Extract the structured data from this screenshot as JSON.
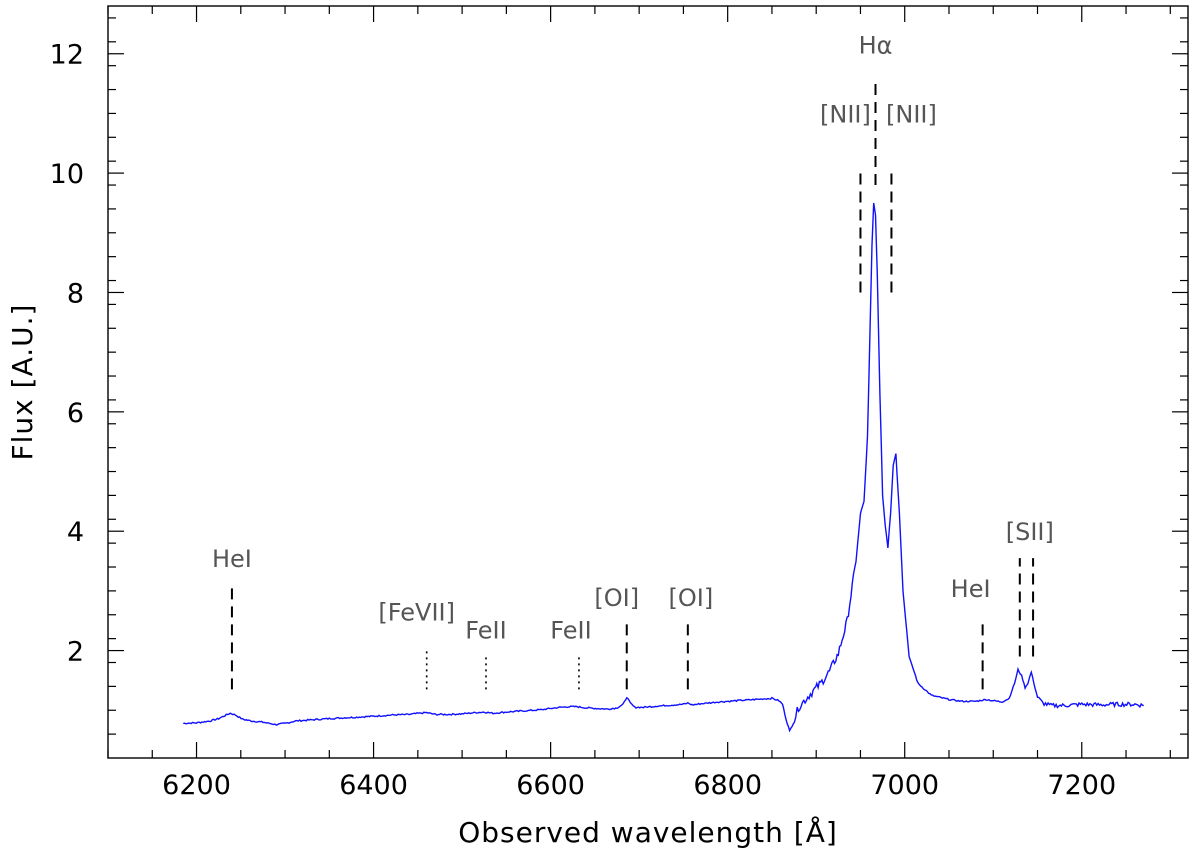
{
  "chart_data": {
    "type": "line",
    "title": "",
    "xlabel": "Observed wavelength [Å]",
    "ylabel": "Flux [A.U.]",
    "xlim": [
      6100,
      7320
    ],
    "ylim": [
      0.2,
      12.8
    ],
    "xticks": [
      6200,
      6400,
      6600,
      6800,
      7000,
      7200
    ],
    "xtick_labels": [
      "6200",
      "6400",
      "6600",
      "6800",
      "7000",
      "7200"
    ],
    "yticks": [
      2,
      4,
      6,
      8,
      10,
      12
    ],
    "ytick_labels": [
      "2",
      "4",
      "6",
      "8",
      "10",
      "12"
    ],
    "x_minor_step": 50,
    "y_minor_step": 0.4,
    "grid": false,
    "series": [
      {
        "color": "#1010ff",
        "x": [
          6185,
          6200,
          6215,
          6225,
          6232,
          6238,
          6244,
          6252,
          6262,
          6275,
          6290,
          6300,
          6312,
          6330,
          6350,
          6375,
          6400,
          6420,
          6440,
          6452,
          6460,
          6470,
          6485,
          6500,
          6515,
          6525,
          6535,
          6550,
          6570,
          6590,
          6605,
          6620,
          6630,
          6640,
          6652,
          6665,
          6675,
          6682,
          6686,
          6690,
          6695,
          6705,
          6720,
          6740,
          6750,
          6755,
          6760,
          6770,
          6790,
          6810,
          6830,
          6850,
          6858,
          6862,
          6866,
          6870,
          6874,
          6880,
          6886,
          6895,
          6905,
          6915,
          6925,
          6935,
          6945,
          6950,
          6954,
          6958,
          6961,
          6963,
          6965,
          6967,
          6969,
          6972,
          6975,
          6978,
          6981,
          6984,
          6987,
          6990,
          6994,
          6998,
          7005,
          7015,
          7030,
          7050,
          7065,
          7080,
          7088,
          7092,
          7100,
          7110,
          7118,
          7124,
          7128,
          7132,
          7136,
          7139,
          7143,
          7146,
          7150,
          7156,
          7165,
          7180,
          7200,
          7220,
          7240,
          7260,
          7270
        ],
        "y": [
          0.78,
          0.79,
          0.82,
          0.86,
          0.91,
          0.95,
          0.92,
          0.85,
          0.82,
          0.8,
          0.76,
          0.78,
          0.82,
          0.84,
          0.86,
          0.88,
          0.9,
          0.92,
          0.93,
          0.95,
          0.96,
          0.93,
          0.93,
          0.94,
          0.96,
          0.97,
          0.95,
          0.97,
          0.99,
          1.01,
          1.04,
          1.06,
          1.06,
          1.04,
          1.03,
          1.02,
          1.04,
          1.1,
          1.22,
          1.12,
          1.05,
          1.05,
          1.07,
          1.09,
          1.1,
          1.12,
          1.09,
          1.11,
          1.14,
          1.16,
          1.18,
          1.2,
          1.16,
          1.1,
          0.85,
          0.65,
          0.78,
          1.05,
          1.15,
          1.3,
          1.45,
          1.65,
          1.95,
          2.5,
          3.5,
          4.3,
          4.5,
          5.6,
          7.5,
          8.8,
          9.5,
          9.3,
          8.3,
          6.3,
          4.6,
          4.1,
          3.72,
          4.3,
          5.1,
          5.3,
          4.3,
          3.0,
          1.9,
          1.45,
          1.25,
          1.18,
          1.15,
          1.15,
          1.17,
          1.18,
          1.16,
          1.14,
          1.2,
          1.45,
          1.68,
          1.58,
          1.38,
          1.45,
          1.64,
          1.45,
          1.22,
          1.12,
          1.08,
          1.08,
          1.1,
          1.09,
          1.1,
          1.1,
          1.08
        ]
      }
    ],
    "annotations": [
      {
        "label": "HeI",
        "x": 6240,
        "style": "dash",
        "line_y": [
          1.35,
          3.05
        ],
        "label_y": 3.4
      },
      {
        "label": "[FeVII]",
        "x": 6460,
        "style": "dot",
        "line_y": [
          1.35,
          2.0
        ],
        "label_y": 2.5,
        "label_dx": -10
      },
      {
        "label": "FeII",
        "x": 6527,
        "style": "dot",
        "line_y": [
          1.35,
          1.95
        ],
        "label_y": 2.2
      },
      {
        "label": "FeII",
        "x": 6632,
        "style": "dot",
        "line_y": [
          1.35,
          1.95
        ],
        "label_y": 2.2,
        "label_dx": -8
      },
      {
        "label": "[OI]",
        "x": 6686,
        "style": "dash",
        "line_y": [
          1.35,
          2.55
        ],
        "label_y": 2.75,
        "label_dx": -10
      },
      {
        "label": "[OI]",
        "x": 6755,
        "style": "dash",
        "line_y": [
          1.35,
          2.55
        ],
        "label_y": 2.75,
        "label_dx": 3
      },
      {
        "label": "[NII]",
        "x": 6950,
        "style": "dash",
        "line_y": [
          8.0,
          10.0
        ],
        "label_y": 10.85,
        "label_dx": -15
      },
      {
        "label": "Hα",
        "x": 6967,
        "style": "dash",
        "line_y": [
          9.8,
          11.55
        ],
        "label_y": 12.0
      },
      {
        "label": "[NII]",
        "x": 6985,
        "style": "dash",
        "line_y": [
          8.0,
          10.0
        ],
        "label_y": 10.85,
        "label_dx": 20
      },
      {
        "label": "HeI",
        "x": 7088,
        "style": "dash",
        "line_y": [
          1.35,
          2.55
        ],
        "label_y": 2.9,
        "label_dx": -12
      },
      {
        "label": "[SII]",
        "x": 7130,
        "style": "dash",
        "line_y": [
          1.9,
          3.55
        ],
        "label_y": 3.85,
        "label_dx": 10
      },
      {
        "x": 7145,
        "style": "dash",
        "line_y": [
          1.9,
          3.55
        ]
      }
    ]
  }
}
